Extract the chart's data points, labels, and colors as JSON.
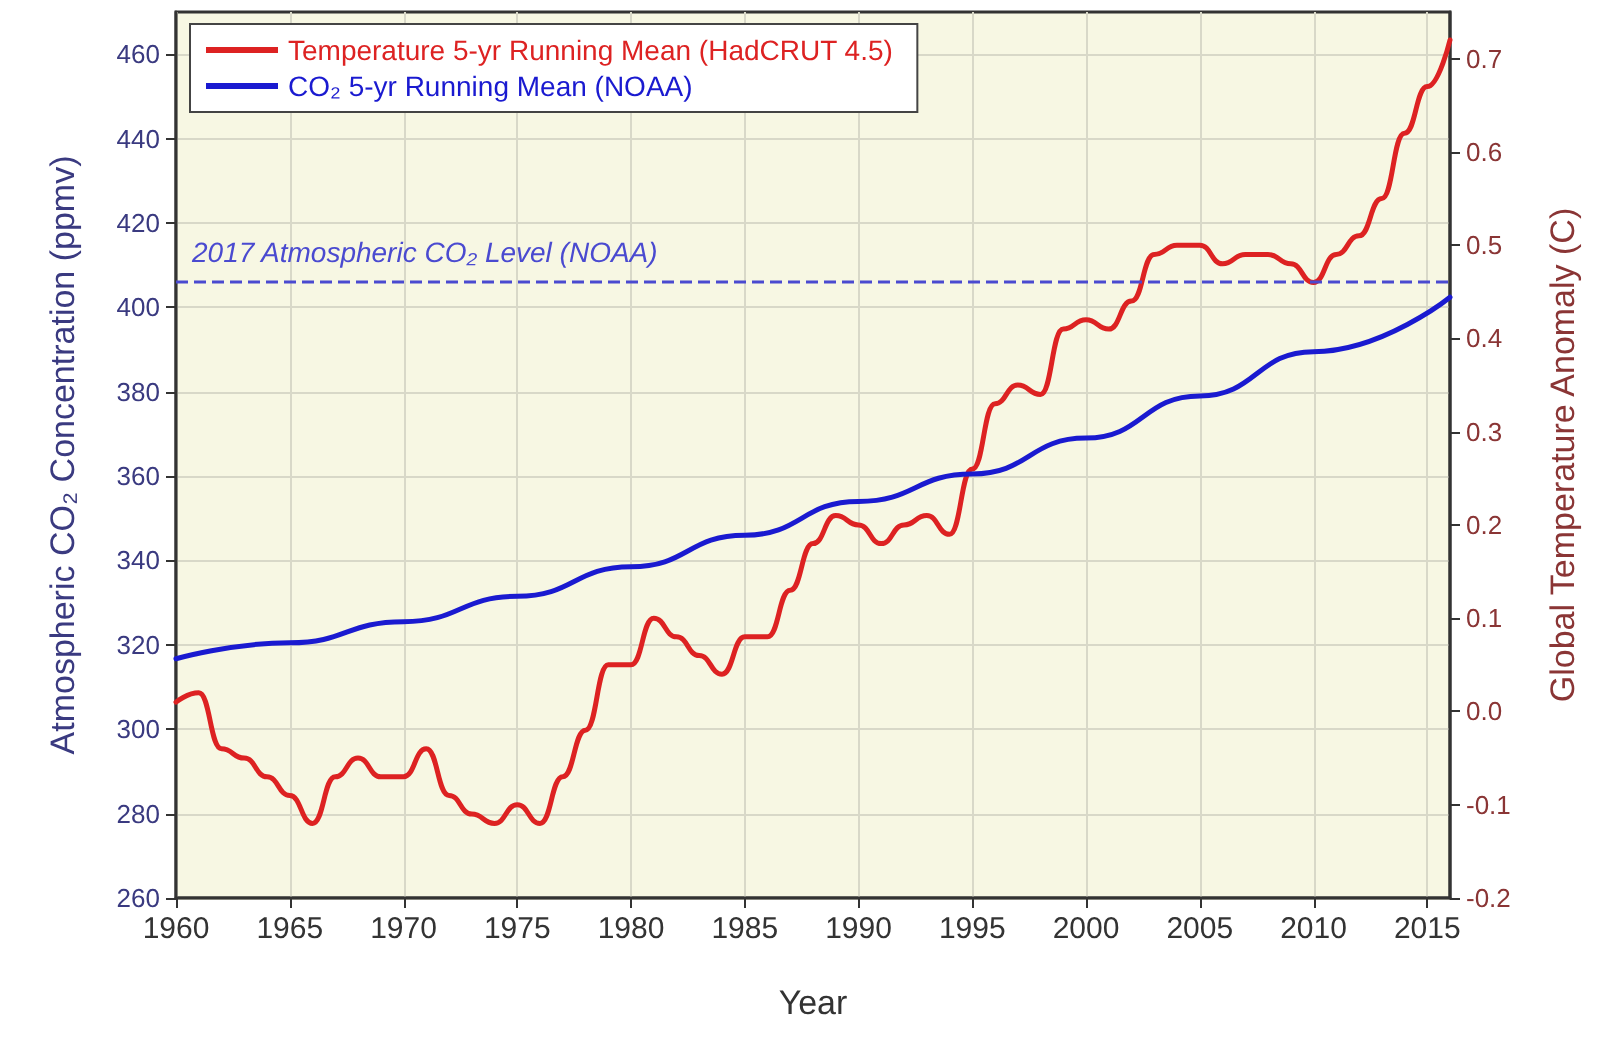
{
  "chart_data": {
    "type": "line",
    "xlabel": "Year",
    "ylabel": "Atmospheric CO₂ Concentration (ppmv)",
    "y2label": "Global Temperature Anomaly (C)",
    "xlim": [
      1960,
      2016
    ],
    "xticks": [
      1960,
      1965,
      1970,
      1975,
      1980,
      1985,
      1990,
      1995,
      2000,
      2005,
      2010,
      2015
    ],
    "ylim": [
      260,
      470
    ],
    "yticks": [
      260,
      280,
      300,
      320,
      340,
      360,
      380,
      400,
      420,
      440,
      460
    ],
    "y2lim": [
      -0.2,
      0.75
    ],
    "y2ticks": [
      -0.2,
      -0.1,
      {
        "value": 0,
        "label": "0.0"
      },
      0.1,
      0.2,
      0.3,
      0.4,
      0.5,
      0.6,
      0.7
    ],
    "grid": true,
    "legend": "top left",
    "line_style": "solid",
    "marker": "none",
    "series": [
      {
        "name": "Temperature 5-yr Running Mean (HadCRUT 4.5)",
        "color": "#dd2222",
        "axis": "y2",
        "x": [
          1960,
          1961,
          1962,
          1963,
          1964,
          1965,
          1966,
          1967,
          1968,
          1969,
          1970,
          1971,
          1972,
          1973,
          1974,
          1975,
          1976,
          1977,
          1978,
          1979,
          1980,
          1981,
          1982,
          1983,
          1984,
          1985,
          1986,
          1987,
          1988,
          1989,
          1990,
          1991,
          1992,
          1993,
          1994,
          1995,
          1996,
          1997,
          1998,
          1999,
          2000,
          2001,
          2002,
          2003,
          2004,
          2005,
          2006,
          2007,
          2008,
          2009,
          2010,
          2011,
          2012,
          2013,
          2014,
          2015,
          2016
        ],
        "values": [
          0.01,
          0.02,
          -0.04,
          -0.05,
          -0.07,
          -0.09,
          -0.12,
          -0.07,
          -0.05,
          -0.07,
          -0.07,
          -0.04,
          -0.09,
          -0.11,
          -0.12,
          -0.1,
          -0.12,
          -0.07,
          -0.02,
          0.05,
          0.05,
          0.1,
          0.08,
          0.06,
          0.04,
          0.08,
          0.08,
          0.13,
          0.18,
          0.21,
          0.2,
          0.18,
          0.2,
          0.21,
          0.19,
          0.26,
          0.33,
          0.35,
          0.34,
          0.41,
          0.42,
          0.41,
          0.44,
          0.49,
          0.5,
          0.5,
          0.48,
          0.49,
          0.49,
          0.48,
          0.46,
          0.49,
          0.51,
          0.55,
          0.62,
          0.67,
          0.72
        ]
      },
      {
        "name": "CO₂ 5-yr Running Mean (NOAA)",
        "color": "#1a1ad0",
        "x": [
          1960,
          1965,
          1970,
          1975,
          1980,
          1985,
          1990,
          1995,
          2000,
          2005,
          2010,
          2016
        ],
        "values": [
          316.7,
          320.5,
          325.5,
          331.5,
          338.5,
          346,
          354,
          360.5,
          369,
          379,
          389.5,
          402.4
        ]
      }
    ],
    "ref_lines": [
      {
        "axis": "y",
        "value": 406,
        "label": "2017 Atmospheric CO₂ Level (NOAA)",
        "color": "#4a4ad0",
        "line_style": "dashed"
      }
    ]
  }
}
